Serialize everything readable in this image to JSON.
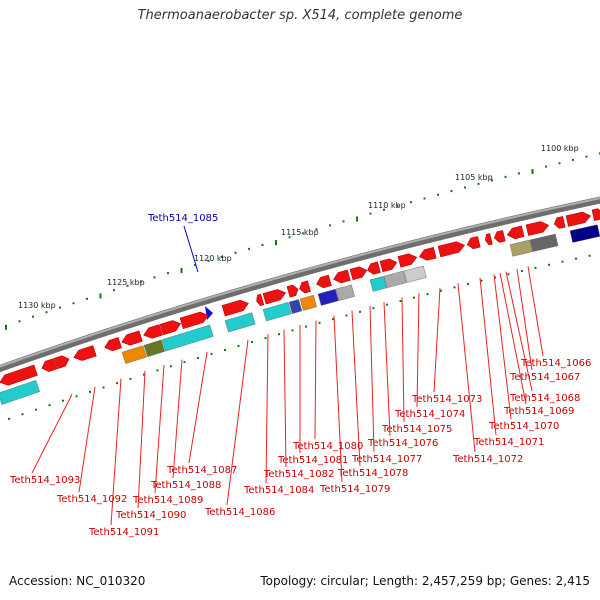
{
  "title": "Thermoanaerobacter sp. X514, complete genome",
  "accession": "Accession: NC_010320",
  "topology": "Topology: circular; Length: 2,457,259 bp; Genes: 2,415",
  "scale_labels": [
    "1100 kbp",
    "1105 kbp",
    "1110 kbp",
    "1115 kbp",
    "1120 kbp",
    "1125 kbp",
    "1130 kbp"
  ],
  "highlighted_gene": "Teth514_1085",
  "gene_labels": [
    "Teth514_1066",
    "Teth514_1067",
    "Teth514_1068",
    "Teth514_1069",
    "Teth514_1070",
    "Teth514_1071",
    "Teth514_1072",
    "Teth514_1073",
    "Teth514_1074",
    "Teth514_1075",
    "Teth514_1076",
    "Teth514_1077",
    "Teth514_1078",
    "Teth514_1079",
    "Teth514_1080",
    "Teth514_1081",
    "Teth514_1082",
    "Teth514_1084",
    "Teth514_1086",
    "Teth514_1087",
    "Teth514_1088",
    "Teth514_1089",
    "Teth514_1090",
    "Teth514_1091",
    "Teth514_1092",
    "Teth514_1093"
  ],
  "colors": {
    "cds": "#ee1111",
    "cds_dark": "#aa0000",
    "cog_cyan": "#22cccc",
    "backbone": "#888888",
    "tick": "#117711",
    "label_line": "#ee2222",
    "highlight": "#0000cc"
  }
}
